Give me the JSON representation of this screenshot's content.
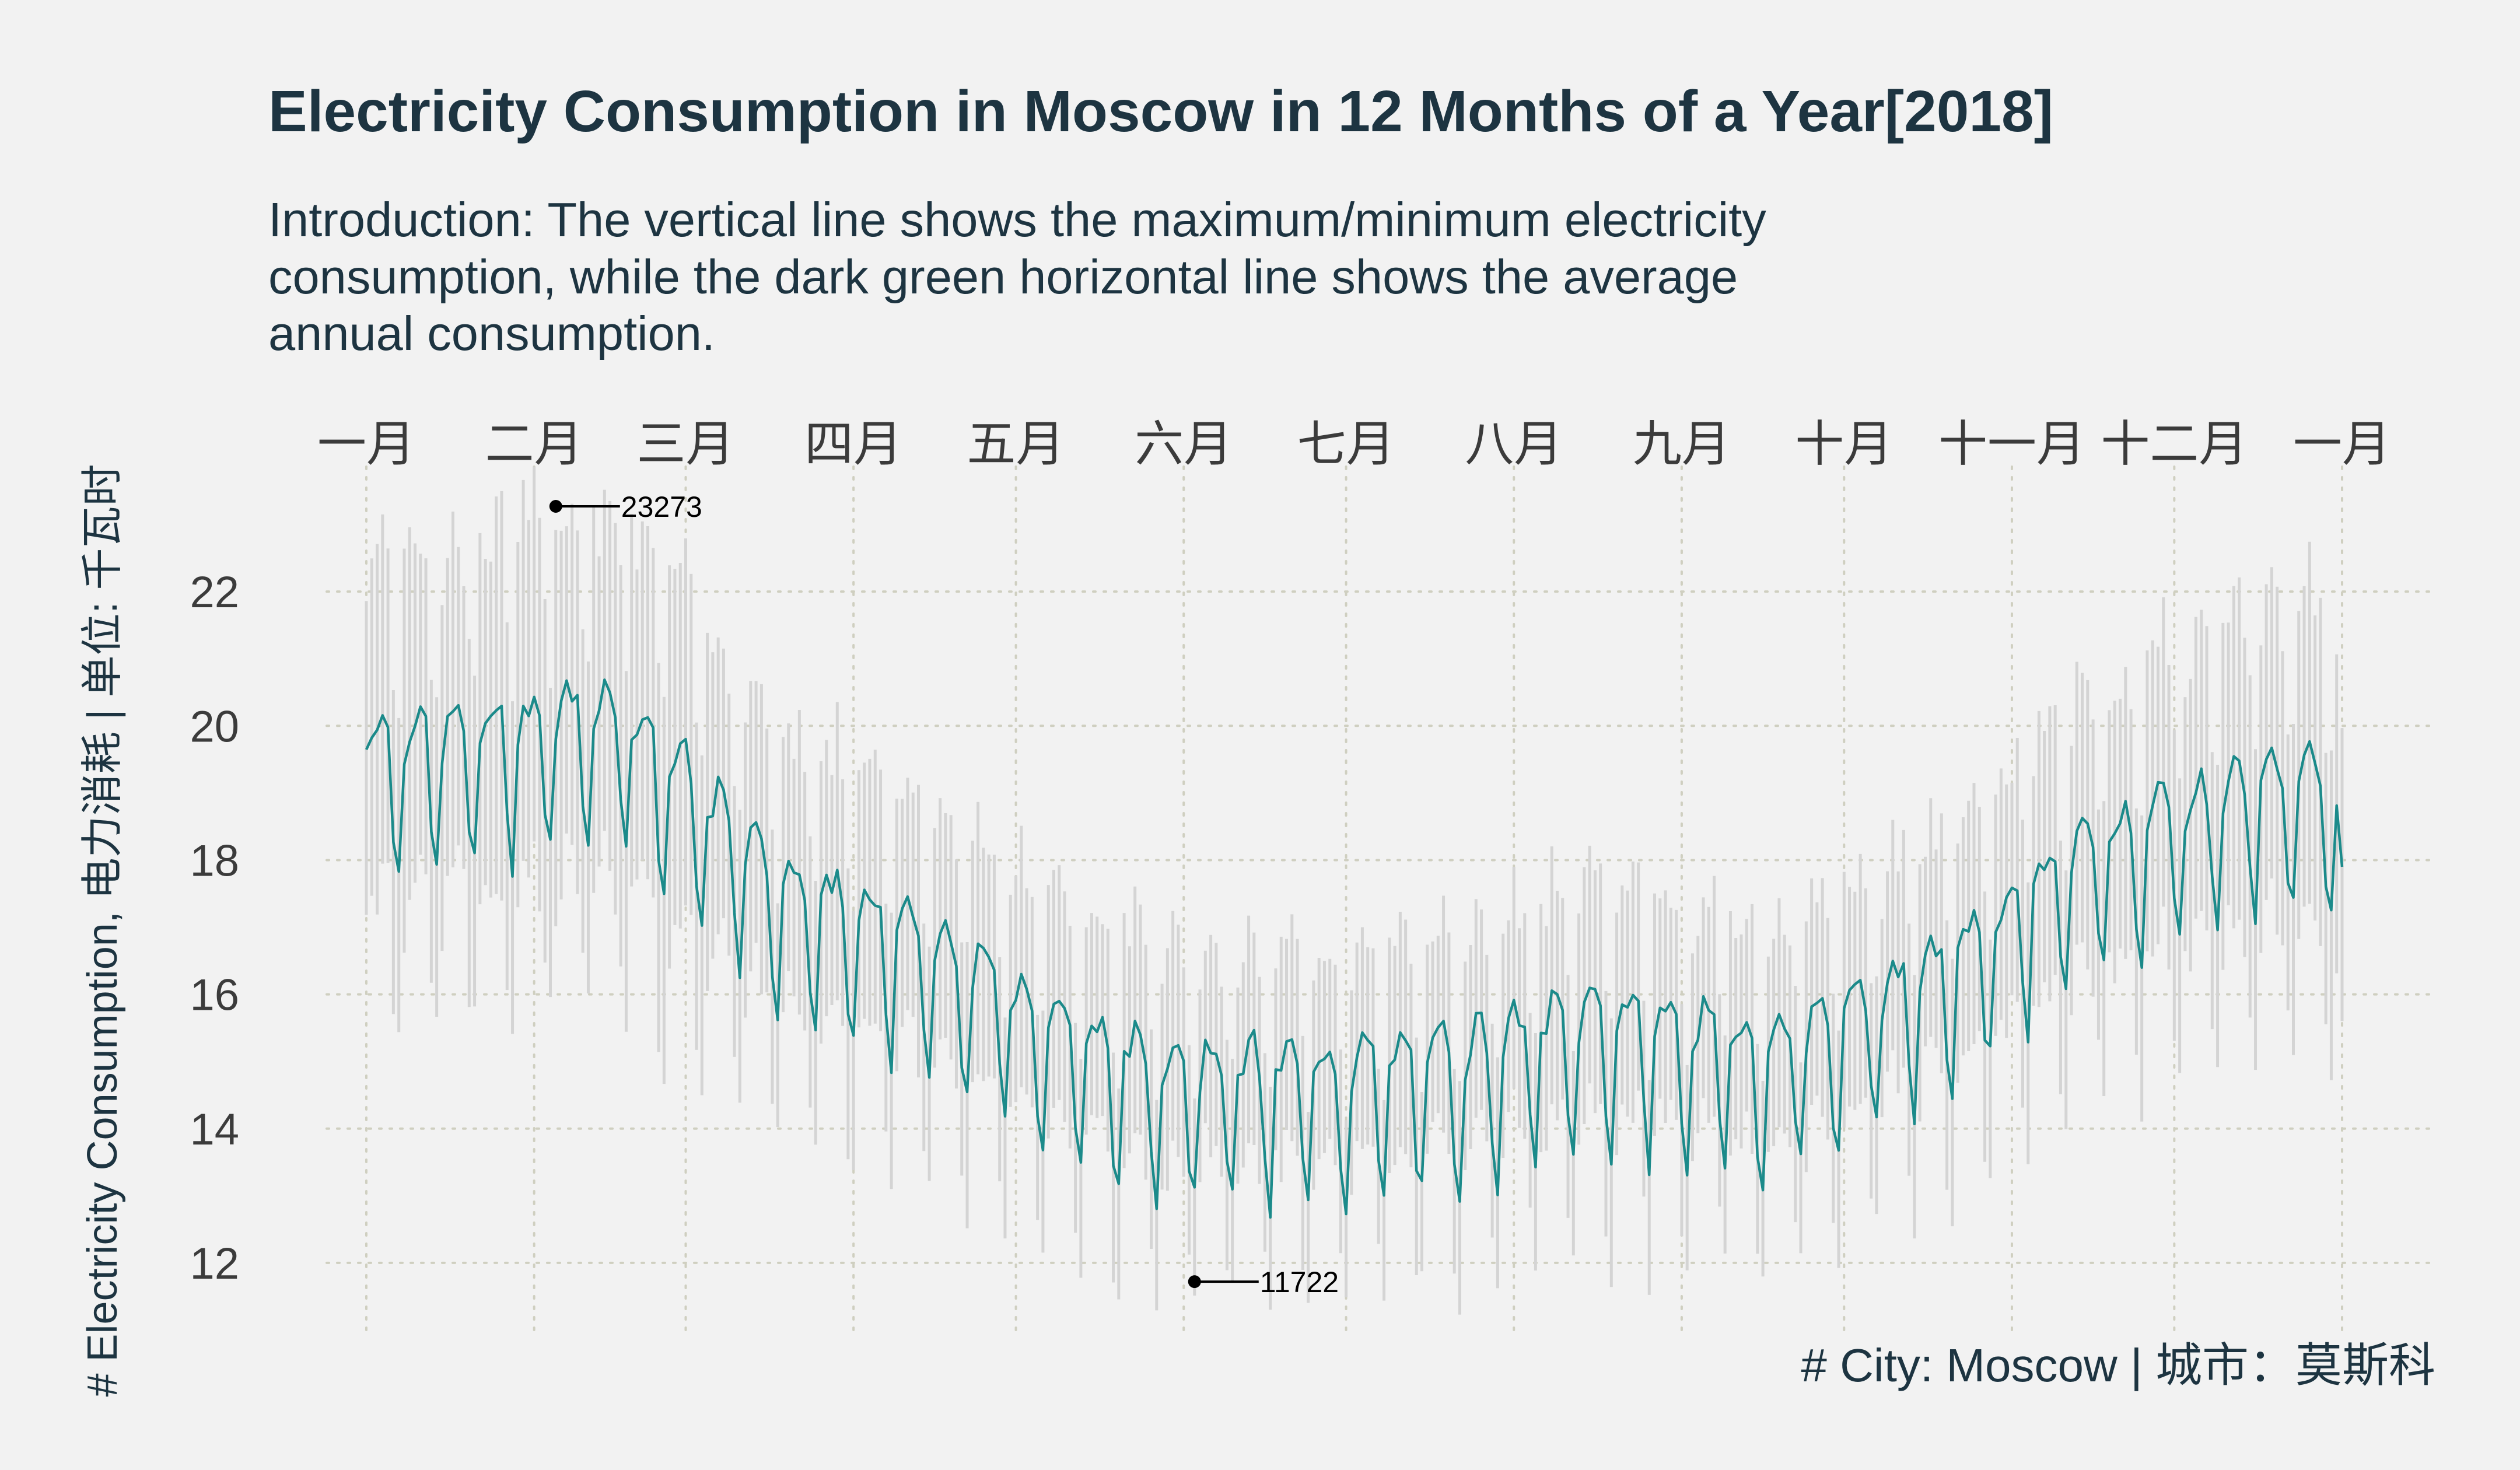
{
  "chart_data": {
    "type": "line",
    "title": "Electricity Consumption in Moscow in 12 Months of a Year[2018]",
    "subtitle_lines": [
      "Introduction: The vertical line shows the maximum/minimum electricity",
      "consumption, while the dark green horizontal line shows the average",
      "annual consumption."
    ],
    "ylabel": "# Electricity Consumption, 电力消耗 | 单位: 千瓦时",
    "caption": "# City: Moscow | 城市：莫斯科",
    "ylim": [
      11,
      23.6
    ],
    "y_ticks": [
      12,
      14,
      16,
      18,
      20,
      22
    ],
    "y_tick_labels": [
      "12",
      "14",
      "16",
      "18",
      "20",
      "22"
    ],
    "x_start": "2018-01-01",
    "x_end": "2019-01-01",
    "x_tick_dates": [
      "2018-01-01",
      "2018-02-01",
      "2018-03-01",
      "2018-04-01",
      "2018-05-01",
      "2018-06-01",
      "2018-07-01",
      "2018-08-01",
      "2018-09-01",
      "2018-10-01",
      "2018-11-01",
      "2018-12-01",
      "2019-01-01"
    ],
    "x_tick_labels": [
      "一月",
      "二月",
      "三月",
      "四月",
      "五月",
      "六月",
      "七月",
      "八月",
      "九月",
      "十月",
      "十一月",
      "十二月",
      "一月"
    ],
    "grid": true,
    "colors": {
      "line": "#1b8a8a",
      "range": "#d4d4d4",
      "annotation": "#000000"
    },
    "monthly_avg": [
      19.4,
      19.9,
      17.3,
      16.3,
      14.7,
      14.4,
      14.6,
      15.3,
      14.8,
      15.9,
      17.9,
      18.8
    ],
    "monthly_spread": [
      2.6,
      2.9,
      2.1,
      1.9,
      1.7,
      1.6,
      1.6,
      1.8,
      1.6,
      1.8,
      2.1,
      2.4
    ],
    "last_day_value": 17.9,
    "max_annotation": {
      "label": "23273",
      "date": "2018-02-05",
      "value": 23.27
    },
    "min_annotation": {
      "label": "11722",
      "date": "2018-06-03",
      "value": 11.72
    }
  }
}
